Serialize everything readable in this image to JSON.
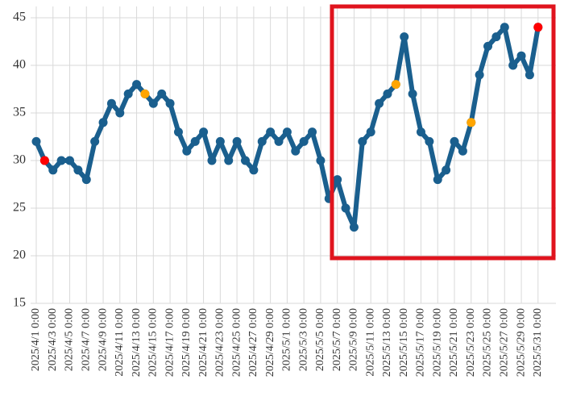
{
  "chart_data": {
    "type": "line",
    "categories": [
      "2025/4/1 0:00",
      null,
      "2025/4/3 0:00",
      null,
      "2025/4/5 0:00",
      null,
      "2025/4/7 0:00",
      null,
      "2025/4/9 0:00",
      null,
      "2025/4/11 0:00",
      null,
      "2025/4/13 0:00",
      null,
      "2025/4/15 0:00",
      null,
      "2025/4/17 0:00",
      null,
      "2025/4/19 0:00",
      null,
      "2025/4/21 0:00",
      null,
      "2025/4/23 0:00",
      null,
      "2025/4/25 0:00",
      null,
      "2025/4/27 0:00",
      null,
      "2025/4/29 0:00",
      null,
      "2025/5/1 0:00",
      null,
      "2025/5/3 0:00",
      null,
      "2025/5/5 0:00",
      null,
      "2025/5/7 0:00",
      null,
      "2025/5/9 0:00",
      null,
      "2025/5/11 0:00",
      null,
      "2025/5/13 0:00",
      null,
      "2025/5/15 0:00",
      null,
      "2025/5/17 0:00",
      null,
      "2025/5/19 0:00",
      null,
      "2025/5/21 0:00",
      null,
      "2025/5/23 0:00",
      null,
      "2025/5/25 0:00",
      null,
      "2025/5/27 0:00",
      null,
      "2025/5/29 0:00",
      null,
      "2025/5/31 0:00"
    ],
    "series": [
      {
        "color": "#1a5f8e",
        "values": [
          32,
          30,
          29,
          30,
          30,
          29,
          28,
          32,
          34,
          36,
          35,
          37,
          38,
          37,
          36,
          37,
          36,
          33,
          31,
          32,
          33,
          30,
          32,
          30,
          32,
          30,
          29,
          32,
          33,
          32,
          33,
          31,
          32,
          33,
          30,
          26,
          28,
          25,
          23,
          32,
          33,
          36,
          37,
          38,
          43,
          37,
          33,
          32,
          28,
          29,
          32,
          31,
          34,
          39,
          42,
          43,
          44,
          40,
          41,
          39,
          44
        ]
      },
      {
        "color": "#ff0000",
        "values": [
          null,
          30,
          null,
          null,
          null,
          null,
          null,
          null,
          null,
          null,
          null,
          null,
          null,
          null,
          null,
          null,
          null,
          null,
          null,
          null,
          null,
          null,
          null,
          null,
          null,
          null,
          null,
          null,
          null,
          null,
          null,
          null,
          null,
          null,
          null,
          null,
          null,
          null,
          null,
          null,
          null,
          null,
          null,
          null,
          null,
          null,
          null,
          null,
          null,
          null,
          null,
          null,
          null,
          null,
          null,
          null,
          null,
          null,
          null,
          null,
          44
        ]
      },
      {
        "color": "#ffa500",
        "values": [
          null,
          null,
          null,
          null,
          null,
          null,
          null,
          null,
          null,
          null,
          null,
          null,
          null,
          37,
          null,
          null,
          null,
          null,
          null,
          null,
          null,
          null,
          null,
          null,
          null,
          null,
          null,
          null,
          null,
          null,
          null,
          null,
          null,
          null,
          null,
          null,
          null,
          null,
          null,
          null,
          null,
          null,
          null,
          38,
          null,
          null,
          null,
          null,
          null,
          null,
          null,
          null,
          34,
          null,
          null,
          null,
          null,
          null,
          null,
          null,
          null
        ]
      }
    ],
    "ylim": [
      15,
      45
    ],
    "yticks": [
      15,
      20,
      25,
      30,
      35,
      40,
      45
    ],
    "grid": true
  }
}
